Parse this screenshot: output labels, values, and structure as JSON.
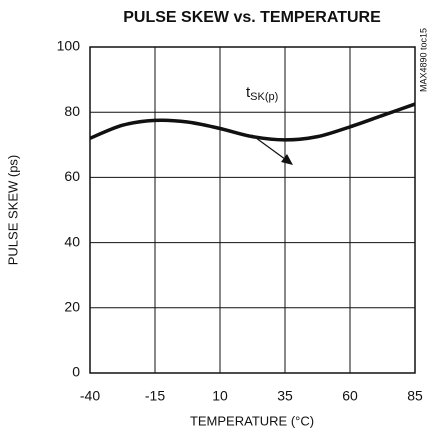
{
  "chart_data": {
    "type": "line",
    "title": "PULSE SKEW vs. TEMPERATURE",
    "xlabel": "TEMPERATURE (°C)",
    "ylabel": "PULSE SKEW (ps)",
    "side_note": "MAX4890 toc15",
    "annotation": {
      "text": "t",
      "subscript": "SK(p)"
    },
    "x": [
      -40,
      -27.5,
      -15,
      -2.5,
      10,
      22.5,
      35,
      47.5,
      60,
      72.5,
      85
    ],
    "series": [
      {
        "name": "tSK(p)",
        "color": "#111111",
        "values": [
          72,
          76,
          77.5,
          77,
          75,
          72.5,
          71.5,
          72.5,
          75.5,
          79,
          82.5
        ]
      }
    ],
    "xlim": [
      -40,
      85
    ],
    "xticks": [
      -40,
      -15,
      10,
      35,
      60,
      85
    ],
    "ylim": [
      0,
      100
    ],
    "yticks": [
      0,
      20,
      40,
      60,
      80,
      100
    ],
    "grid": true
  }
}
